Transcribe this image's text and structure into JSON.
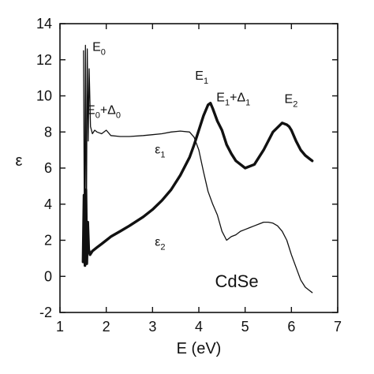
{
  "chart_data": {
    "type": "line",
    "title": "",
    "xlabel": "E (eV)",
    "ylabel": "ε",
    "xlim": [
      1,
      7
    ],
    "ylim": [
      -2,
      14
    ],
    "xticks": [
      1,
      2,
      3,
      4,
      5,
      6,
      7
    ],
    "yticks": [
      -2,
      0,
      2,
      4,
      6,
      8,
      10,
      12,
      14
    ],
    "grid": false,
    "legend": "none",
    "series": [
      {
        "label_main": "ε",
        "label_sub": "1",
        "color": "#111111",
        "line": "thin",
        "x": [
          1.51,
          1.53,
          1.55,
          1.57,
          1.59,
          1.61,
          1.63,
          1.66,
          1.7,
          1.75,
          1.8,
          1.9,
          2.0,
          2.1,
          2.3,
          2.5,
          2.8,
          3.0,
          3.2,
          3.4,
          3.6,
          3.8,
          3.9,
          4.0,
          4.05,
          4.1,
          4.2,
          4.3,
          4.4,
          4.5,
          4.6,
          4.7,
          4.8,
          4.9,
          5.0,
          5.1,
          5.2,
          5.3,
          5.4,
          5.5,
          5.6,
          5.7,
          5.8,
          5.9,
          6.0,
          6.1,
          6.2,
          6.3,
          6.4,
          6.45
        ],
        "y": [
          12.5,
          1.0,
          12.8,
          2.0,
          12.6,
          7.5,
          11.5,
          8.3,
          7.9,
          8.1,
          8.0,
          7.9,
          8.1,
          7.8,
          7.75,
          7.75,
          7.8,
          7.85,
          7.9,
          8.0,
          8.05,
          8.0,
          7.7,
          7.0,
          6.4,
          5.8,
          4.7,
          4.0,
          3.4,
          2.5,
          2.0,
          2.2,
          2.3,
          2.5,
          2.6,
          2.7,
          2.8,
          2.9,
          3.0,
          3.0,
          2.95,
          2.8,
          2.5,
          2.0,
          1.2,
          0.5,
          -0.2,
          -0.6,
          -0.8,
          -0.9
        ]
      },
      {
        "label_main": "ε",
        "label_sub": "2",
        "color": "#111111",
        "line": "thick",
        "x": [
          1.5,
          1.52,
          1.54,
          1.56,
          1.58,
          1.6,
          1.62,
          1.65,
          1.7,
          1.8,
          1.9,
          2.0,
          2.1,
          2.3,
          2.5,
          2.8,
          3.0,
          3.2,
          3.4,
          3.6,
          3.8,
          3.9,
          4.0,
          4.1,
          4.2,
          4.25,
          4.3,
          4.4,
          4.5,
          4.6,
          4.7,
          4.8,
          5.0,
          5.2,
          5.4,
          5.6,
          5.8,
          5.9,
          5.95,
          6.0,
          6.1,
          6.2,
          6.3,
          6.4,
          6.45
        ],
        "y": [
          0.8,
          4.5,
          0.6,
          4.8,
          0.7,
          3.0,
          1.5,
          1.2,
          1.4,
          1.6,
          1.8,
          2.0,
          2.2,
          2.5,
          2.8,
          3.3,
          3.7,
          4.2,
          4.8,
          5.6,
          6.6,
          7.3,
          8.1,
          8.9,
          9.5,
          9.6,
          9.3,
          8.6,
          8.1,
          7.3,
          6.8,
          6.4,
          6.0,
          6.2,
          7.0,
          8.0,
          8.5,
          8.4,
          8.3,
          8.1,
          7.5,
          7.0,
          6.7,
          6.5,
          6.4
        ]
      }
    ],
    "annotations": [
      {
        "main": "E",
        "sub": "0",
        "suffix": "",
        "suffix_sub": "",
        "x": 1.7,
        "y": 12.5
      },
      {
        "main": "E",
        "sub": "0",
        "suffix": "+Δ",
        "suffix_sub": "0",
        "x": 1.58,
        "y": 9.0
      },
      {
        "main": "E",
        "sub": "1",
        "suffix": "",
        "suffix_sub": "",
        "x": 3.92,
        "y": 10.9
      },
      {
        "main": "E",
        "sub": "1",
        "suffix": "+Δ",
        "suffix_sub": "1",
        "x": 4.38,
        "y": 9.7
      },
      {
        "main": "E",
        "sub": "2",
        "suffix": "",
        "suffix_sub": "",
        "x": 5.85,
        "y": 9.6
      },
      {
        "main": "ε",
        "sub": "1",
        "suffix": "",
        "suffix_sub": "",
        "x": 3.05,
        "y": 6.8
      },
      {
        "main": "ε",
        "sub": "2",
        "suffix": "",
        "suffix_sub": "",
        "x": 3.05,
        "y": 1.7
      }
    ],
    "inset_label": {
      "text": "CdSe",
      "x": 4.35,
      "y": -0.6
    }
  }
}
